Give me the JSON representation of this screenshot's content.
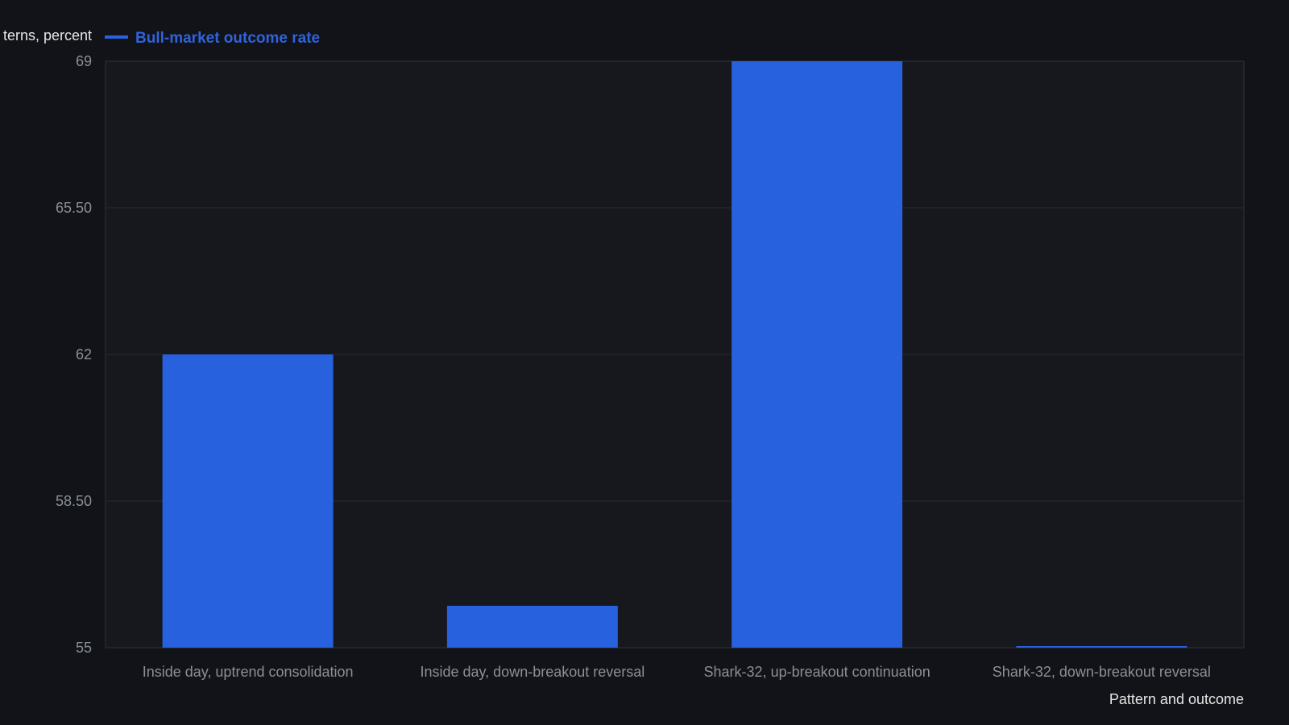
{
  "chart_data": {
    "type": "bar",
    "categories": [
      "Inside day, uptrend consolidation",
      "Inside day, down-breakout reversal",
      "Shark-32, up-breakout continuation",
      "Shark-32, down-breakout reversal"
    ],
    "series": [
      {
        "name": "Bull-market outcome rate",
        "values": [
          62,
          56,
          69,
          55
        ],
        "color": "#2761de"
      }
    ],
    "xlabel": "Pattern and outcome",
    "ylabel": "terns, percent",
    "ylim": [
      55,
      69
    ],
    "yticks": [
      55,
      58.5,
      62,
      65.5,
      69
    ],
    "ytick_labels": [
      "55",
      "58.50",
      "62",
      "65.50",
      "69"
    ],
    "grid": true,
    "legend_position": "top-left",
    "colors": {
      "background": "#111318",
      "plot_background": "#16181d",
      "grid": "#262a31",
      "bar": "#2761de"
    }
  }
}
